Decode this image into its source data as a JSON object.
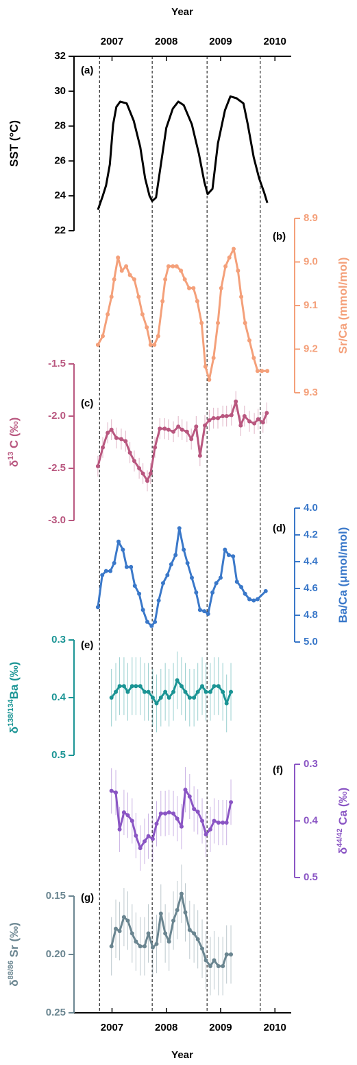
{
  "shared_x": {
    "label": "Year",
    "xlim": [
      2006.3,
      2010.3
    ],
    "xticks": [
      2007,
      2008,
      2009,
      2010
    ],
    "dashed_lines": [
      2006.77,
      2007.74,
      2008.75,
      2009.73
    ]
  },
  "chart_data": [
    {
      "type": "line",
      "panel_label": "(a)",
      "ylabel": [
        "SST (°C)"
      ],
      "color": "#000000",
      "markers": false,
      "inverted": false,
      "ylim": [
        22,
        32
      ],
      "yticks": [
        22,
        24,
        26,
        28,
        30,
        32
      ],
      "x": [
        2006.74,
        2006.83,
        2006.89,
        2006.96,
        2007.02,
        2007.08,
        2007.15,
        2007.27,
        2007.4,
        2007.52,
        2007.61,
        2007.69,
        2007.74,
        2007.81,
        2007.9,
        2008.0,
        2008.12,
        2008.22,
        2008.32,
        2008.47,
        2008.6,
        2008.7,
        2008.76,
        2008.85,
        2008.95,
        2009.08,
        2009.18,
        2009.29,
        2009.42,
        2009.5,
        2009.61,
        2009.71,
        2009.8,
        2009.86
      ],
      "values": [
        23.2,
        24.0,
        24.6,
        25.8,
        28.1,
        29.1,
        29.4,
        29.3,
        28.3,
        26.8,
        25.0,
        24.0,
        23.7,
        23.9,
        25.8,
        27.9,
        29.0,
        29.4,
        29.2,
        28.1,
        26.4,
        24.8,
        24.1,
        24.4,
        27.0,
        28.9,
        29.7,
        29.6,
        29.3,
        28.1,
        26.2,
        25.0,
        24.2,
        23.6
      ]
    },
    {
      "type": "line",
      "panel_label": "(b)",
      "ylabel": [
        "Sr/Ca (mmol/mol)"
      ],
      "color": "#f4a07a",
      "markers": true,
      "inverted": true,
      "ylim": [
        8.9,
        9.3
      ],
      "yticks": [
        8.9,
        {
          "value": 9,
          "label": "9.0"
        },
        9.1,
        9.2,
        9.3
      ],
      "x": [
        2006.74,
        2006.83,
        2006.92,
        2006.99,
        2007.04,
        2007.11,
        2007.18,
        2007.26,
        2007.33,
        2007.41,
        2007.49,
        2007.56,
        2007.64,
        2007.71,
        2007.78,
        2007.85,
        2007.93,
        2007.98,
        2008.04,
        2008.12,
        2008.19,
        2008.27,
        2008.34,
        2008.42,
        2008.5,
        2008.57,
        2008.65,
        2008.72,
        2008.79,
        2008.87,
        2008.95,
        2009.01,
        2009.09,
        2009.16,
        2009.24,
        2009.32,
        2009.38,
        2009.45,
        2009.53,
        2009.61,
        2009.68,
        2009.76,
        2009.86
      ],
      "values": [
        9.19,
        9.17,
        9.12,
        9.08,
        9.04,
        8.99,
        9.02,
        9.01,
        9.03,
        9.04,
        9.08,
        9.12,
        9.15,
        9.19,
        9.19,
        9.17,
        9.09,
        9.04,
        9.01,
        9.01,
        9.01,
        9.02,
        9.04,
        9.06,
        9.06,
        9.09,
        9.14,
        9.24,
        9.27,
        9.22,
        9.14,
        9.06,
        9.01,
        8.99,
        8.97,
        9.02,
        9.08,
        9.14,
        9.18,
        9.22,
        9.25,
        9.25,
        9.25
      ]
    },
    {
      "type": "line",
      "panel_label": "(c)",
      "ylabel": [
        "δ",
        "13",
        " C (‰)"
      ],
      "color": "#b9577f",
      "markers": true,
      "inverted": false,
      "ylim": [
        -3,
        -1.5
      ],
      "yticks": [
        {
          "value": -3,
          "label": "-3.0"
        },
        -2.5,
        {
          "value": -2,
          "label": "-2.0"
        },
        -1.5
      ],
      "x": [
        2006.74,
        2006.83,
        2006.92,
        2006.99,
        2007.08,
        2007.17,
        2007.25,
        2007.33,
        2007.41,
        2007.5,
        2007.57,
        2007.65,
        2007.71,
        2007.79,
        2007.88,
        2007.97,
        2008.04,
        2008.13,
        2008.22,
        2008.29,
        2008.38,
        2008.46,
        2008.55,
        2008.62,
        2008.71,
        2008.79,
        2008.87,
        2008.95,
        2009.04,
        2009.11,
        2009.2,
        2009.28,
        2009.37,
        2009.44,
        2009.53,
        2009.62,
        2009.69,
        2009.78,
        2009.85
      ],
      "values": [
        -2.48,
        -2.3,
        -2.16,
        -2.13,
        -2.21,
        -2.22,
        -2.24,
        -2.35,
        -2.43,
        -2.5,
        -2.55,
        -2.62,
        -2.55,
        -2.3,
        -2.12,
        -2.12,
        -2.13,
        -2.15,
        -2.1,
        -2.13,
        -2.15,
        -2.22,
        -2.1,
        -2.38,
        -2.09,
        -2.04,
        -2.02,
        -2.02,
        -2.0,
        -2.0,
        -1.99,
        -1.86,
        -2.09,
        -2.0,
        -2.05,
        -2.07,
        -2.03,
        -2.06,
        -1.97
      ],
      "errors": [
        0.1,
        0.1,
        0.1,
        0.1,
        0.1,
        0.1,
        0.1,
        0.1,
        0.1,
        0.1,
        0.1,
        0.1,
        0.1,
        0.1,
        0.1,
        0.1,
        0.1,
        0.1,
        0.1,
        0.1,
        0.1,
        0.1,
        0.1,
        0.1,
        0.1,
        0.1,
        0.1,
        0.1,
        0.1,
        0.1,
        0.1,
        0.1,
        0.1,
        0.1,
        0.1,
        0.1,
        0.1,
        0.1,
        0.1
      ]
    },
    {
      "type": "line",
      "panel_label": "(d)",
      "ylabel": [
        "Ba/Ca (μmol/mol)"
      ],
      "color": "#3a78c9",
      "markers": true,
      "inverted": true,
      "ylim": [
        4,
        5
      ],
      "yticks": [
        {
          "value": 4,
          "label": "4.0"
        },
        4.2,
        4.4,
        4.6,
        4.8,
        {
          "value": 5,
          "label": "5.0"
        }
      ],
      "x": [
        2006.74,
        2006.82,
        2006.89,
        2006.97,
        2007.04,
        2007.12,
        2007.2,
        2007.27,
        2007.35,
        2007.42,
        2007.5,
        2007.57,
        2007.65,
        2007.73,
        2007.79,
        2007.86,
        2007.94,
        2008.02,
        2008.09,
        2008.17,
        2008.24,
        2008.32,
        2008.39,
        2008.47,
        2008.55,
        2008.62,
        2008.7,
        2008.77,
        2008.85,
        2008.92,
        2009.0,
        2009.08,
        2009.15,
        2009.23,
        2009.3,
        2009.38,
        2009.45,
        2009.53,
        2009.61,
        2009.68,
        2009.83
      ],
      "values": [
        4.74,
        4.5,
        4.47,
        4.47,
        4.41,
        4.25,
        4.31,
        4.44,
        4.44,
        4.58,
        4.64,
        4.76,
        4.85,
        4.88,
        4.85,
        4.69,
        4.56,
        4.5,
        4.42,
        4.35,
        4.15,
        4.31,
        4.41,
        4.52,
        4.63,
        4.76,
        4.77,
        4.79,
        4.63,
        4.56,
        4.52,
        4.31,
        4.35,
        4.36,
        4.55,
        4.59,
        4.64,
        4.68,
        4.69,
        4.68,
        4.62
      ]
    },
    {
      "type": "line",
      "panel_label": "(e)",
      "ylabel": [
        "δ",
        "138/134",
        "Ba (‰)"
      ],
      "color": "#1a9494",
      "markers": true,
      "inverted": true,
      "ylim": [
        0.3,
        0.5
      ],
      "yticks": [
        0.3,
        0.4,
        0.5
      ],
      "x": [
        2006.99,
        2007.07,
        2007.14,
        2007.22,
        2007.29,
        2007.37,
        2007.44,
        2007.52,
        2007.6,
        2007.67,
        2007.75,
        2007.82,
        2007.9,
        2007.98,
        2008.05,
        2008.13,
        2008.2,
        2008.28,
        2008.35,
        2008.43,
        2008.51,
        2008.58,
        2008.66,
        2008.73,
        2008.81,
        2008.88,
        2008.96,
        2009.04,
        2009.11,
        2009.19
      ],
      "values": [
        0.4,
        0.39,
        0.38,
        0.38,
        0.39,
        0.38,
        0.38,
        0.38,
        0.39,
        0.39,
        0.4,
        0.41,
        0.4,
        0.39,
        0.4,
        0.39,
        0.37,
        0.38,
        0.39,
        0.4,
        0.4,
        0.39,
        0.38,
        0.39,
        0.39,
        0.38,
        0.38,
        0.39,
        0.41,
        0.39
      ],
      "errors": [
        0.05,
        0.05,
        0.05,
        0.05,
        0.05,
        0.05,
        0.05,
        0.05,
        0.05,
        0.05,
        0.05,
        0.05,
        0.05,
        0.05,
        0.05,
        0.05,
        0.05,
        0.05,
        0.05,
        0.05,
        0.05,
        0.05,
        0.05,
        0.05,
        0.05,
        0.05,
        0.05,
        0.05,
        0.05,
        0.05
      ]
    },
    {
      "type": "line",
      "panel_label": "(f)",
      "ylabel": [
        "δ",
        "44/42",
        " Ca (‰)"
      ],
      "color": "#8a55c4",
      "markers": true,
      "inverted": true,
      "ylim": [
        0.3,
        0.5
      ],
      "yticks": [
        0.3,
        0.4,
        0.5
      ],
      "x": [
        2006.99,
        2007.07,
        2007.14,
        2007.22,
        2007.29,
        2007.37,
        2007.44,
        2007.52,
        2007.6,
        2007.67,
        2007.75,
        2007.82,
        2007.9,
        2007.98,
        2008.05,
        2008.13,
        2008.2,
        2008.28,
        2008.35,
        2008.43,
        2008.51,
        2008.58,
        2008.66,
        2008.73,
        2008.81,
        2008.88,
        2008.96,
        2009.04,
        2009.11,
        2009.19
      ],
      "values": [
        0.347,
        0.35,
        0.415,
        0.385,
        0.39,
        0.4,
        0.426,
        0.448,
        0.436,
        0.427,
        0.432,
        0.405,
        0.387,
        0.387,
        0.385,
        0.387,
        0.396,
        0.41,
        0.345,
        0.357,
        0.379,
        0.384,
        0.4,
        0.424,
        0.415,
        0.4,
        0.403,
        0.403,
        0.403,
        0.367
      ],
      "errors": [
        0.04,
        0.04,
        0.04,
        0.04,
        0.04,
        0.04,
        0.04,
        0.04,
        0.04,
        0.04,
        0.04,
        0.04,
        0.04,
        0.04,
        0.04,
        0.04,
        0.04,
        0.04,
        0.04,
        0.04,
        0.04,
        0.04,
        0.04,
        0.04,
        0.04,
        0.04,
        0.04,
        0.04,
        0.04,
        0.04
      ]
    },
    {
      "type": "line",
      "panel_label": "(g)",
      "ylabel": [
        "δ",
        "88/86",
        " Sr (‰)"
      ],
      "color": "#6a8590",
      "markers": true,
      "inverted": true,
      "ylim": [
        0.15,
        0.25
      ],
      "yticks": [
        0.15,
        {
          "value": 0.2,
          "label": "0.20"
        },
        0.25
      ],
      "x": [
        2006.99,
        2007.07,
        2007.14,
        2007.22,
        2007.29,
        2007.37,
        2007.44,
        2007.52,
        2007.6,
        2007.67,
        2007.75,
        2007.82,
        2007.9,
        2007.98,
        2008.05,
        2008.13,
        2008.2,
        2008.28,
        2008.35,
        2008.43,
        2008.51,
        2008.58,
        2008.66,
        2008.73,
        2008.81,
        2008.88,
        2008.96,
        2009.04,
        2009.11,
        2009.19
      ],
      "values": [
        0.193,
        0.178,
        0.18,
        0.168,
        0.171,
        0.182,
        0.189,
        0.193,
        0.193,
        0.182,
        0.194,
        0.191,
        0.165,
        0.182,
        0.189,
        0.171,
        0.162,
        0.148,
        0.164,
        0.179,
        0.182,
        0.187,
        0.195,
        0.205,
        0.21,
        0.205,
        0.21,
        0.21,
        0.2,
        0.2
      ],
      "errors": [
        0.025,
        0.025,
        0.025,
        0.025,
        0.025,
        0.025,
        0.025,
        0.025,
        0.025,
        0.025,
        0.025,
        0.025,
        0.025,
        0.025,
        0.025,
        0.025,
        0.025,
        0.025,
        0.025,
        0.025,
        0.025,
        0.025,
        0.025,
        0.025,
        0.025,
        0.025,
        0.025,
        0.025,
        0.025,
        0.025
      ]
    }
  ]
}
